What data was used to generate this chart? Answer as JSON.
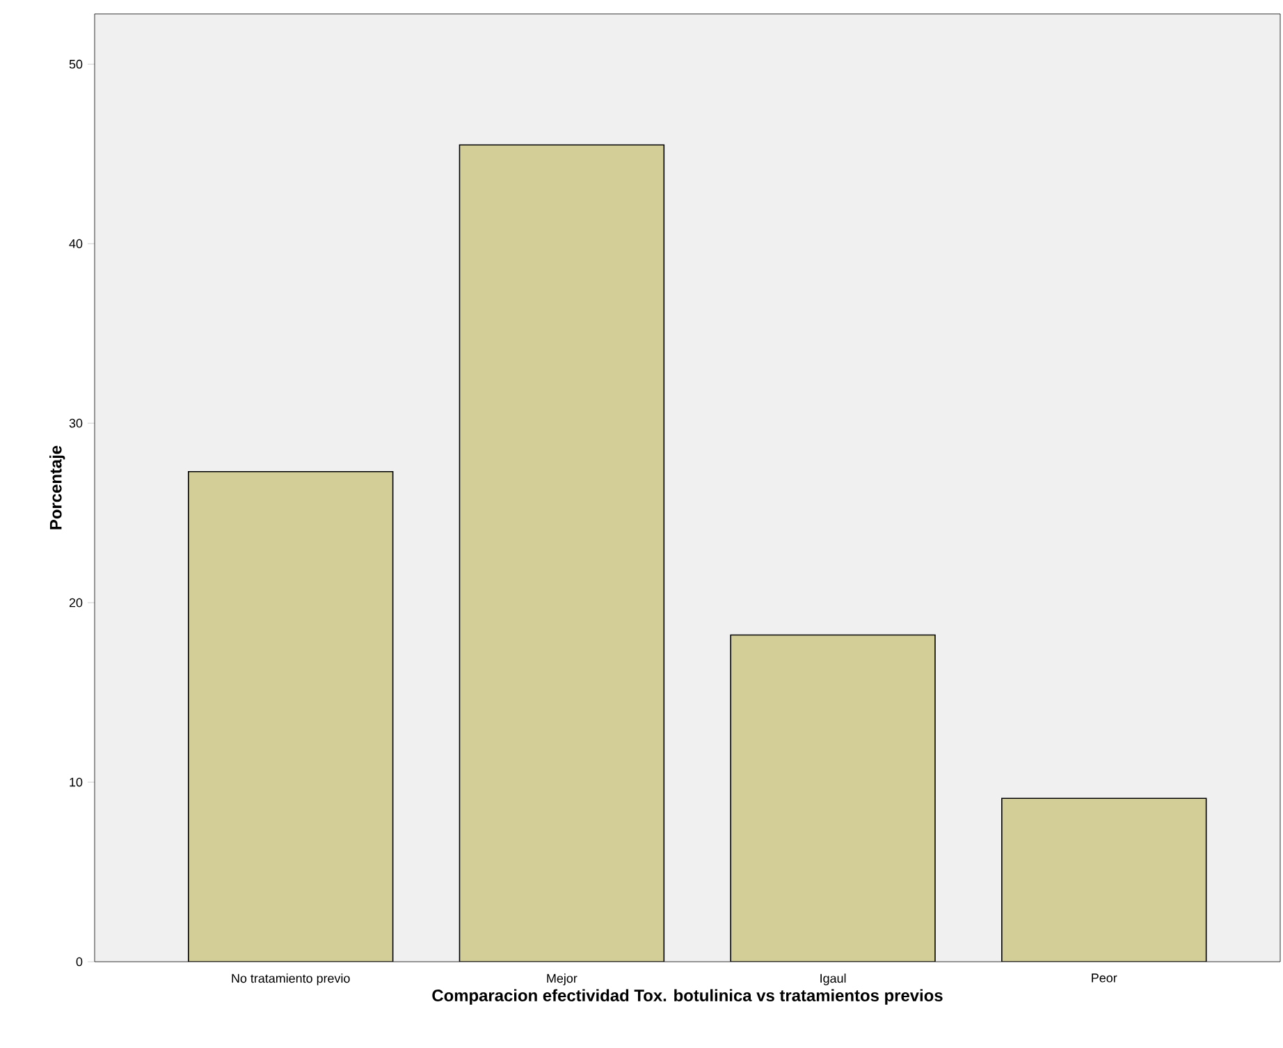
{
  "chart_data": {
    "type": "bar",
    "xlabel": "Comparacion efectividad Tox. botulinica vs tratamientos previos",
    "ylabel": "Porcentaje",
    "categories": [
      "No tratamiento previo",
      "Mejor",
      "Igaul",
      "Peor"
    ],
    "values": [
      27.3,
      45.5,
      18.2,
      9.1
    ],
    "color": "#d3ce97",
    "ylim": [
      0,
      52.8
    ],
    "yticks": [
      0,
      10,
      20,
      30,
      40,
      50
    ],
    "grid": false
  }
}
